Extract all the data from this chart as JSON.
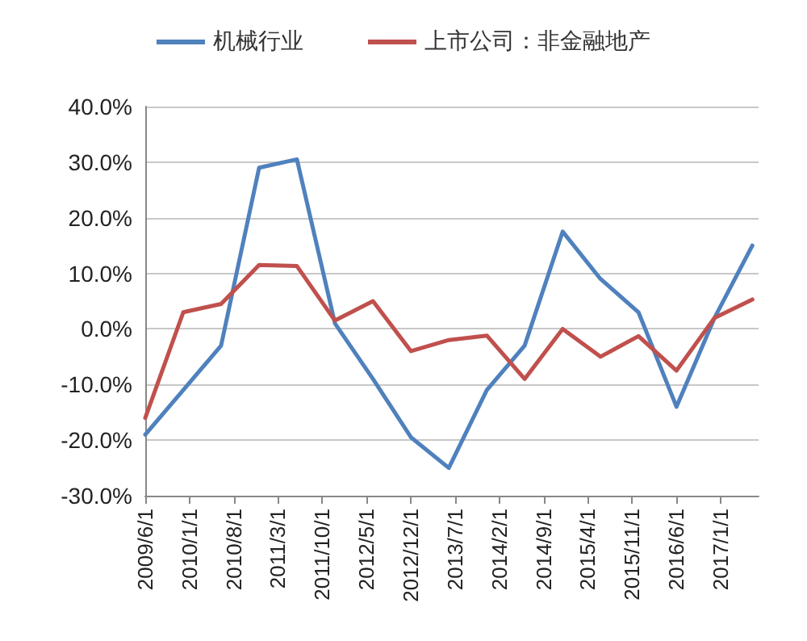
{
  "chart_data": {
    "type": "line",
    "x": [
      "2009-06-01",
      "2009-12-01",
      "2010-06-01",
      "2010-12-01",
      "2011-06-01",
      "2011-12-01",
      "2012-06-01",
      "2012-12-01",
      "2013-06-01",
      "2013-12-01",
      "2014-06-01",
      "2014-12-01",
      "2015-06-01",
      "2015-12-01",
      "2016-06-01",
      "2016-12-01",
      "2017-06-01"
    ],
    "series": [
      {
        "name": "机械行业",
        "color": "#4f81bd",
        "values": [
          -19,
          -11,
          -3,
          29,
          30.5,
          1,
          -9,
          -19.5,
          -25,
          -11,
          -3,
          17.5,
          9,
          3,
          -14,
          2,
          15
        ]
      },
      {
        "name": "上市公司：非金融地产",
        "color": "#c0504d",
        "values": [
          -16,
          3,
          4.5,
          11.5,
          11.3,
          1.5,
          5,
          -4,
          -2,
          -1.2,
          -9,
          0,
          -5,
          -1.3,
          -7.5,
          2,
          5.3
        ]
      }
    ],
    "xlim": [
      "2009-06-01",
      "2017-07-01"
    ],
    "xticks": [
      {
        "value": "2009-06-01",
        "label": "2009/6/1"
      },
      {
        "value": "2010-01-01",
        "label": "2010/1/1"
      },
      {
        "value": "2010-08-01",
        "label": "2010/8/1"
      },
      {
        "value": "2011-03-01",
        "label": "2011/3/1"
      },
      {
        "value": "2011-10-01",
        "label": "2011/10/1"
      },
      {
        "value": "2012-05-01",
        "label": "2012/5/1"
      },
      {
        "value": "2012-12-01",
        "label": "2012/12/1"
      },
      {
        "value": "2013-07-01",
        "label": "2013/7/1"
      },
      {
        "value": "2014-02-01",
        "label": "2014/2/1"
      },
      {
        "value": "2014-09-01",
        "label": "2014/9/1"
      },
      {
        "value": "2015-04-01",
        "label": "2015/4/1"
      },
      {
        "value": "2015-11-01",
        "label": "2015/11/1"
      },
      {
        "value": "2016-06-01",
        "label": "2016/6/1"
      },
      {
        "value": "2017-01-01",
        "label": "2017/1/1"
      }
    ],
    "ylim": [
      -30,
      40
    ],
    "yticks": [
      {
        "value": -30,
        "label": "-30.0%"
      },
      {
        "value": -20,
        "label": "-20.0%"
      },
      {
        "value": -10,
        "label": "-10.0%"
      },
      {
        "value": 0,
        "label": "0.0%"
      },
      {
        "value": 10,
        "label": "10.0%"
      },
      {
        "value": 20,
        "label": "20.0%"
      },
      {
        "value": 30,
        "label": "30.0%"
      },
      {
        "value": 40,
        "label": "40.0%"
      }
    ],
    "grid": "y",
    "legend": "top",
    "marker": "none",
    "line_style": "solid"
  }
}
